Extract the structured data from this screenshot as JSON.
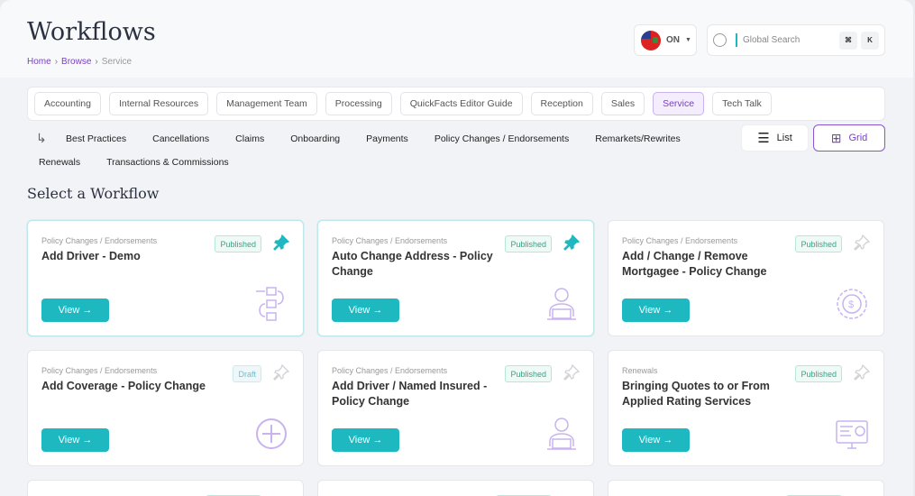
{
  "header": {
    "title": "Workflows",
    "breadcrumb": [
      "Home",
      "Browse",
      "Service"
    ],
    "province": "ON",
    "search_placeholder": "Global Search",
    "shortcut": [
      "⌘",
      "K"
    ]
  },
  "categories": [
    {
      "label": "Accounting"
    },
    {
      "label": "Internal Resources"
    },
    {
      "label": "Management Team"
    },
    {
      "label": "Processing"
    },
    {
      "label": "QuickFacts Editor Guide"
    },
    {
      "label": "Reception"
    },
    {
      "label": "Sales"
    },
    {
      "label": "Service",
      "active": true
    },
    {
      "label": "Tech Talk"
    }
  ],
  "subcategories": [
    "Best Practices",
    "Cancellations",
    "Claims",
    "Onboarding",
    "Payments",
    "Policy Changes / Endorsements",
    "Remarkets/Rewrites",
    "Renewals",
    "Transactions & Commissions"
  ],
  "view_toggle": {
    "list": "List",
    "grid": "Grid",
    "selected": "Grid"
  },
  "section_title": "Select a Workflow",
  "colors": {
    "accent": "#1eb8c0",
    "brand": "#7b3fc4"
  },
  "cards": [
    {
      "category": "Policy Changes / Endorsements",
      "name": "Add Driver - Demo",
      "status": "Published",
      "pinned": true,
      "icon": "workflow-steps-icon",
      "view": "View →"
    },
    {
      "category": "Policy Changes / Endorsements",
      "name": "Auto Change Address - Policy Change",
      "status": "Published",
      "pinned": true,
      "icon": "person-laptop-icon",
      "view": "View →"
    },
    {
      "category": "Policy Changes / Endorsements",
      "name": "Add / Change / Remove Mortgagee - Policy Change",
      "status": "Published",
      "pinned": false,
      "icon": "money-gear-icon",
      "view": "View →"
    },
    {
      "category": "Policy Changes / Endorsements",
      "name": "Add Coverage - Policy Change",
      "status": "Draft",
      "pinned": false,
      "icon": "plus-circle-icon",
      "view": "View →"
    },
    {
      "category": "Policy Changes / Endorsements",
      "name": "Add Driver / Named Insured - Policy Change",
      "status": "Published",
      "pinned": false,
      "icon": "person-laptop-icon",
      "view": "View →"
    },
    {
      "category": "Renewals",
      "name": "Bringing Quotes to or From Applied Rating Services",
      "status": "Published",
      "pinned": false,
      "icon": "monitor-settings-icon",
      "view": "View →"
    }
  ]
}
